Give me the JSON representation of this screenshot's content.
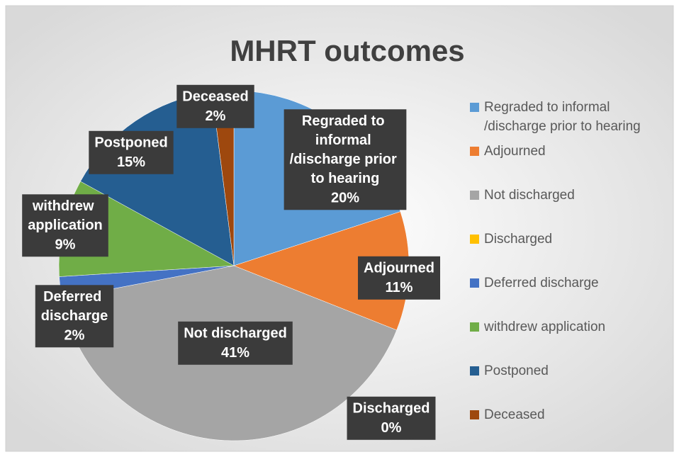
{
  "chart_data": {
    "type": "pie",
    "title": "MHRT outcomes",
    "categories": [
      "Regraded to informal /discharge prior to hearing",
      "Adjourned",
      "Not discharged",
      "Discharged",
      "Deferred discharge",
      "withdrew application",
      "Postponed",
      "Deceased"
    ],
    "values": [
      20,
      11,
      41,
      0,
      2,
      9,
      15,
      2
    ],
    "value_labels": [
      "20%",
      "11%",
      "41%",
      "0%",
      "2%",
      "9%",
      "15%",
      "2%"
    ],
    "colors": [
      "#5b9bd5",
      "#ed7d31",
      "#a5a5a5",
      "#ffc000",
      "#4472c4",
      "#70ad47",
      "#255e91",
      "#9e480e"
    ],
    "legend": "right"
  }
}
